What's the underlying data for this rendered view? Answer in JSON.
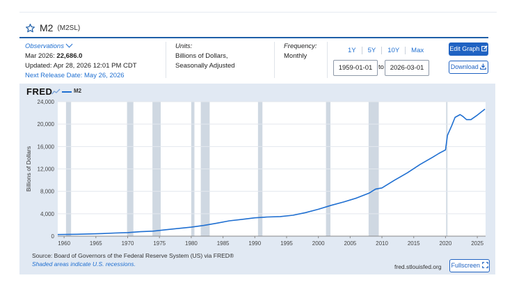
{
  "header": {
    "series_title": "M2",
    "series_id": "(M2SL)"
  },
  "observations": {
    "link_label": "Observations",
    "latest_label": "Mar 2026:",
    "latest_value": "22,686.0",
    "updated": "Updated: Apr 28, 2026 12:01 PM CDT",
    "next_release": "Next Release Date: May 26, 2026"
  },
  "units": {
    "label": "Units:",
    "line1": "Billions of Dollars,",
    "line2": "Seasonally Adjusted"
  },
  "frequency": {
    "label": "Frequency:",
    "value": "Monthly"
  },
  "range_buttons": [
    "1Y",
    "5Y",
    "10Y",
    "Max"
  ],
  "date_range": {
    "start": "1959-01-01",
    "to_label": "to",
    "end": "2026-03-01"
  },
  "buttons": {
    "edit_graph": "Edit Graph",
    "download": "Download",
    "fullscreen": "Fullscreen"
  },
  "branding": {
    "logo_text": "FRED",
    "site": "fred.stlouisfed.org"
  },
  "footer": {
    "source": "Source: Board of Governors of the Federal Reserve System (US) via FRED®",
    "shaded_note": "Shaded areas indicate U.S. recessions."
  },
  "colors": {
    "series_line": "#1f6fd1",
    "accent": "#1f62c2",
    "plot_background": "#e1e9f3",
    "recession": "#cfd8e2"
  },
  "chart_data": {
    "type": "line",
    "legend": [
      "M2"
    ],
    "ylabel": "Billions of Dollars",
    "xlim": [
      1959,
      2026.3
    ],
    "ylim": [
      0,
      24000
    ],
    "yticks": [
      0,
      4000,
      8000,
      12000,
      16000,
      20000,
      24000
    ],
    "ytick_labels": [
      "0",
      "4,000",
      "8,000",
      "12,000",
      "16,000",
      "20,000",
      "24,000"
    ],
    "xticks": [
      1960,
      1965,
      1970,
      1975,
      1980,
      1985,
      1990,
      1995,
      2000,
      2005,
      2010,
      2015,
      2020,
      2025
    ],
    "recessions": [
      [
        1960.3,
        1961.1
      ],
      [
        1969.9,
        1970.9
      ],
      [
        1973.9,
        1975.2
      ],
      [
        1980.0,
        1980.5
      ],
      [
        1981.5,
        1982.9
      ],
      [
        1990.5,
        1991.2
      ],
      [
        2001.2,
        2001.9
      ],
      [
        2007.9,
        2009.5
      ],
      [
        2020.1,
        2020.3
      ]
    ],
    "series": [
      {
        "name": "M2",
        "x": [
          1959,
          1960,
          1962,
          1964,
          1966,
          1968,
          1970,
          1972,
          1974,
          1976,
          1978,
          1980,
          1982,
          1984,
          1986,
          1988,
          1990,
          1992,
          1994,
          1996,
          1998,
          2000,
          2002,
          2004,
          2006,
          2008,
          2009,
          2010,
          2012,
          2014,
          2016,
          2018,
          2019,
          2020.0,
          2020.3,
          2020.7,
          2021,
          2021.5,
          2022.3,
          2022.7,
          2023.3,
          2024,
          2025,
          2026.2
        ],
        "y": [
          286,
          300,
          340,
          400,
          460,
          560,
          630,
          800,
          900,
          1150,
          1380,
          1600,
          1910,
          2310,
          2730,
          3000,
          3270,
          3420,
          3490,
          3730,
          4200,
          4800,
          5500,
          6100,
          6800,
          7700,
          8400,
          8600,
          10000,
          11300,
          12800,
          14100,
          14800,
          15400,
          18000,
          19000,
          19800,
          21200,
          21700,
          21400,
          20800,
          20800,
          21600,
          22686
        ]
      }
    ]
  }
}
